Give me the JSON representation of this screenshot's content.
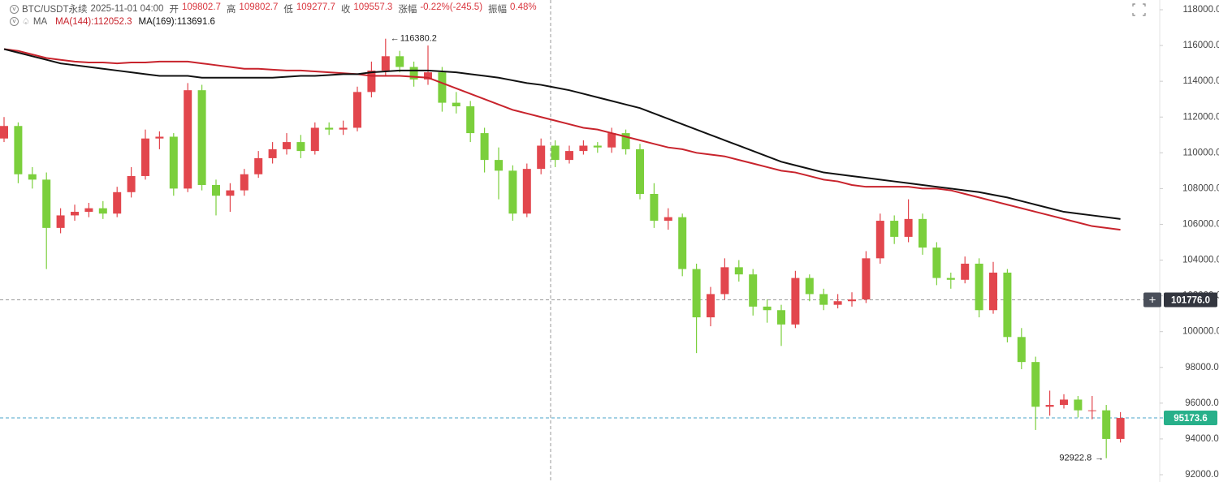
{
  "header": {
    "symbol": "BTC/USDT永续",
    "time": "2025-11-01 04:00",
    "items": [
      {
        "label": "开",
        "value": "109802.7"
      },
      {
        "label": "高",
        "value": "109802.7"
      },
      {
        "label": "低",
        "value": "109277.7"
      },
      {
        "label": "收",
        "value": "109557.3"
      },
      {
        "label": "涨幅",
        "value": "-0.22%(-245.5)"
      },
      {
        "label": "振幅",
        "value": "0.48%"
      }
    ],
    "indicator": "MA"
  },
  "chart_data": {
    "type": "candlestick",
    "up_color": "#e2464d",
    "down_color": "#7bcf3c",
    "open": [
      110800,
      111500,
      108800,
      108500,
      105800,
      106500,
      106700,
      106900,
      106600,
      107800,
      108700,
      110800,
      110900,
      108000,
      113500,
      108200,
      107600,
      107900,
      108800,
      109700,
      110200,
      110600,
      110100,
      111400,
      111300,
      111400,
      113400,
      114600,
      115400,
      114800,
      114100,
      114500,
      112800,
      112600,
      111100,
      109600,
      109000,
      106600,
      109100,
      110400,
      109600,
      110100,
      110400,
      110300,
      111100,
      110200,
      107700,
      106200,
      106400,
      103500,
      100800,
      102100,
      103600,
      103200,
      101400,
      101200,
      100400,
      103000,
      102100,
      101500,
      101700,
      101800,
      104100,
      106200,
      105300,
      106300,
      104700,
      103000,
      102900,
      103800,
      101200,
      103300,
      99700,
      98300,
      95800,
      95900,
      96200,
      95600,
      95600,
      94000
    ],
    "high": [
      112000,
      111700,
      109200,
      108900,
      106900,
      107100,
      107200,
      107300,
      108100,
      109200,
      111300,
      111200,
      111100,
      113900,
      113800,
      108500,
      108300,
      109100,
      110100,
      110600,
      111100,
      111000,
      111700,
      111700,
      111800,
      113700,
      115100,
      116380.2,
      115700,
      115100,
      116000,
      114800,
      113400,
      112900,
      111400,
      110300,
      109300,
      109400,
      110800,
      110700,
      110400,
      110700,
      110600,
      111400,
      111300,
      110500,
      108300,
      106900,
      106600,
      103800,
      102500,
      104100,
      104000,
      103500,
      101800,
      101500,
      103400,
      103200,
      102400,
      102100,
      102200,
      104500,
      106600,
      106500,
      107400,
      106600,
      105000,
      103300,
      104200,
      104100,
      103900,
      103500,
      100200,
      98600,
      96700,
      96500,
      96400,
      96400,
      95900,
      95500
    ],
    "low": [
      110600,
      108300,
      108000,
      103500,
      105500,
      106200,
      106400,
      106300,
      106400,
      107500,
      108500,
      110200,
      107600,
      107800,
      107900,
      106500,
      106700,
      107600,
      108600,
      109400,
      109900,
      109700,
      109900,
      111000,
      111000,
      111200,
      113100,
      114300,
      114500,
      113700,
      113800,
      112300,
      112200,
      110600,
      108900,
      107400,
      106200,
      106400,
      108800,
      109200,
      109400,
      109900,
      110000,
      110000,
      109900,
      107400,
      105800,
      105700,
      103100,
      98800,
      100300,
      101800,
      102800,
      100900,
      100500,
      99200,
      100200,
      101700,
      101200,
      101300,
      101400,
      101600,
      103800,
      104900,
      105000,
      104300,
      102600,
      102400,
      102700,
      100800,
      101000,
      99400,
      97900,
      94500,
      95300,
      95700,
      95200,
      95100,
      92922.8,
      93800
    ],
    "close": [
      111500,
      108800,
      108500,
      105800,
      106500,
      106700,
      106900,
      106600,
      107800,
      108700,
      110800,
      110900,
      108000,
      113500,
      108200,
      107600,
      107900,
      108800,
      109700,
      110200,
      110600,
      110100,
      111400,
      111300,
      111400,
      113400,
      114600,
      115400,
      114800,
      114100,
      114500,
      112800,
      112600,
      111100,
      109600,
      109000,
      106600,
      109100,
      110400,
      109600,
      110100,
      110400,
      110300,
      111100,
      110200,
      107700,
      106200,
      106400,
      103500,
      100800,
      102100,
      103600,
      103200,
      101400,
      101200,
      100400,
      103000,
      102100,
      101500,
      101700,
      101800,
      104100,
      106200,
      105300,
      106300,
      104700,
      103000,
      102900,
      103800,
      101200,
      103300,
      99700,
      98300,
      95800,
      95900,
      96200,
      95600,
      95600,
      94000,
      95173.6
    ],
    "series": [
      {
        "name": "MA(144):112052.3",
        "color": "#c8232c",
        "values": [
          115800,
          115700,
          115500,
          115300,
          115200,
          115100,
          115050,
          115050,
          115000,
          115050,
          115050,
          115100,
          115100,
          115100,
          115000,
          114900,
          114800,
          114700,
          114700,
          114650,
          114600,
          114600,
          114550,
          114500,
          114450,
          114400,
          114300,
          114300,
          114300,
          114250,
          114200,
          113900,
          113600,
          113300,
          113000,
          112700,
          112400,
          112200,
          112000,
          111800,
          111600,
          111400,
          111300,
          111100,
          110900,
          110700,
          110500,
          110300,
          110200,
          110000,
          109900,
          109800,
          109600,
          109400,
          109200,
          109000,
          108900,
          108700,
          108500,
          108400,
          108200,
          108100,
          108100,
          108100,
          108100,
          108000,
          108000,
          107900,
          107700,
          107500,
          107300,
          107100,
          106900,
          106700,
          106500,
          106300,
          106100,
          105900,
          105800,
          105700
        ]
      },
      {
        "name": "MA(169):113691.6",
        "color": "#111111",
        "values": [
          115800,
          115600,
          115400,
          115200,
          115000,
          114900,
          114800,
          114700,
          114600,
          114500,
          114400,
          114300,
          114300,
          114300,
          114200,
          114200,
          114200,
          114200,
          114200,
          114200,
          114250,
          114300,
          114300,
          114350,
          114400,
          114400,
          114500,
          114550,
          114600,
          114600,
          114600,
          114550,
          114500,
          114400,
          114300,
          114200,
          114050,
          113900,
          113800,
          113650,
          113500,
          113300,
          113100,
          112900,
          112700,
          112500,
          112200,
          111900,
          111600,
          111300,
          111000,
          110700,
          110400,
          110100,
          109800,
          109500,
          109300,
          109100,
          108900,
          108800,
          108700,
          108600,
          108500,
          108400,
          108300,
          108200,
          108100,
          108000,
          107900,
          107800,
          107650,
          107500,
          107300,
          107100,
          106900,
          106700,
          106600,
          106500,
          106400,
          106300
        ]
      }
    ],
    "ylim": [
      92000,
      118000
    ],
    "yticks": [
      {
        "value": 92000,
        "label": "92000.0"
      },
      {
        "value": 94000,
        "label": "94000.0"
      },
      {
        "value": 96000,
        "label": "96000.0"
      },
      {
        "value": 98000,
        "label": "98000.0"
      },
      {
        "value": 100000,
        "label": "100000.0"
      },
      {
        "value": 102000,
        "label": "102000.0"
      },
      {
        "value": 104000,
        "label": "104000.0"
      },
      {
        "value": 106000,
        "label": "106000.0"
      },
      {
        "value": 108000,
        "label": "108000.0"
      },
      {
        "value": 110000,
        "label": "110000.0"
      },
      {
        "value": 112000,
        "label": "112000.0"
      },
      {
        "value": 114000,
        "label": "114000.0"
      },
      {
        "value": 116000,
        "label": "116000.0"
      },
      {
        "value": 118000,
        "label": "118000.0"
      }
    ],
    "max_label": 116380.2,
    "min_label": 92922.8,
    "crosshair": {
      "value": 101776,
      "label": "101776.0"
    },
    "current_price": 95173.6
  }
}
